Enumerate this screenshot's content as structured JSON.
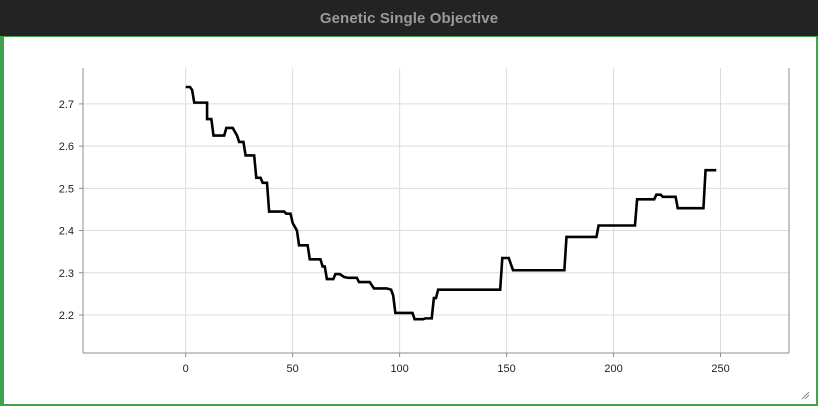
{
  "window": {
    "title": "Genetic Single Objective",
    "accent_color": "#3fa34d",
    "titlebar_color": "#232323"
  },
  "chart_data": {
    "type": "line",
    "title": "",
    "xlabel": "",
    "ylabel": "",
    "xlim": [
      -48,
      282
    ],
    "ylim": [
      2.11,
      2.785
    ],
    "xticks": [
      0,
      50,
      100,
      150,
      200,
      250
    ],
    "yticks": [
      2.2,
      2.3,
      2.4,
      2.5,
      2.6,
      2.7
    ],
    "grid": true,
    "line_color": "#000000",
    "series": [
      {
        "points": [
          [
            0,
            2.74
          ],
          [
            2,
            2.74
          ],
          [
            3,
            2.733
          ],
          [
            4,
            2.703
          ],
          [
            10,
            2.703
          ],
          [
            10,
            2.664
          ],
          [
            12,
            2.664
          ],
          [
            13,
            2.625
          ],
          [
            18,
            2.625
          ],
          [
            19,
            2.643
          ],
          [
            22,
            2.643
          ],
          [
            24,
            2.625
          ],
          [
            25,
            2.61
          ],
          [
            27,
            2.61
          ],
          [
            28,
            2.578
          ],
          [
            32,
            2.578
          ],
          [
            33,
            2.525
          ],
          [
            35,
            2.525
          ],
          [
            36,
            2.513
          ],
          [
            38,
            2.513
          ],
          [
            39,
            2.445
          ],
          [
            46,
            2.445
          ],
          [
            47,
            2.44
          ],
          [
            49,
            2.44
          ],
          [
            50,
            2.418
          ],
          [
            52,
            2.4
          ],
          [
            53,
            2.365
          ],
          [
            56,
            2.365
          ],
          [
            57,
            2.365
          ],
          [
            58,
            2.332
          ],
          [
            63,
            2.332
          ],
          [
            64,
            2.315
          ],
          [
            65,
            2.315
          ],
          [
            66,
            2.285
          ],
          [
            69,
            2.285
          ],
          [
            70,
            2.297
          ],
          [
            72,
            2.297
          ],
          [
            74,
            2.29
          ],
          [
            76,
            2.288
          ],
          [
            80,
            2.288
          ],
          [
            81,
            2.278
          ],
          [
            85,
            2.278
          ],
          [
            86,
            2.278
          ],
          [
            88,
            2.263
          ],
          [
            94,
            2.263
          ],
          [
            96,
            2.26
          ],
          [
            97,
            2.246
          ],
          [
            98,
            2.205
          ],
          [
            106,
            2.205
          ],
          [
            107,
            2.19
          ],
          [
            111,
            2.19
          ],
          [
            112,
            2.192
          ],
          [
            115,
            2.192
          ],
          [
            116,
            2.24
          ],
          [
            117,
            2.24
          ],
          [
            118,
            2.26
          ],
          [
            147,
            2.26
          ],
          [
            148,
            2.335
          ],
          [
            151,
            2.335
          ],
          [
            153,
            2.306
          ],
          [
            177,
            2.306
          ],
          [
            178,
            2.385
          ],
          [
            192,
            2.385
          ],
          [
            193,
            2.412
          ],
          [
            210,
            2.412
          ],
          [
            211,
            2.474
          ],
          [
            219,
            2.474
          ],
          [
            220,
            2.485
          ],
          [
            222,
            2.485
          ],
          [
            223,
            2.48
          ],
          [
            229,
            2.48
          ],
          [
            230,
            2.453
          ],
          [
            240,
            2.453
          ],
          [
            242,
            2.453
          ],
          [
            243,
            2.543
          ],
          [
            248,
            2.543
          ]
        ]
      }
    ]
  }
}
